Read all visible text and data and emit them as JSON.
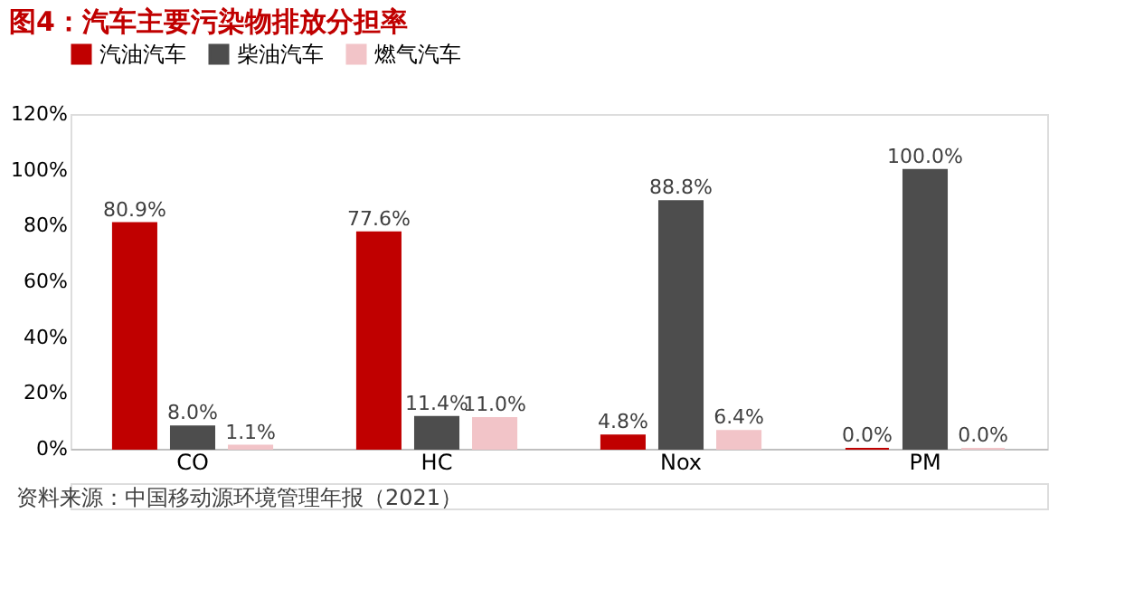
{
  "chart_data": {
    "type": "bar",
    "title": "图4：汽车主要污染物排放分担率",
    "categories": [
      "CO",
      "HC",
      "Nox",
      "PM"
    ],
    "series": [
      {
        "name": "汽油汽车",
        "color": "#c00000",
        "values": [
          80.9,
          77.6,
          4.8,
          0.0
        ],
        "value_labels": [
          "80.9%",
          "77.6%",
          "4.8%",
          "0.0%"
        ]
      },
      {
        "name": "柴油汽车",
        "color": "#4d4d4d",
        "values": [
          8.0,
          11.4,
          88.8,
          100.0
        ],
        "value_labels": [
          "8.0%",
          "11.4%",
          "88.8%",
          "100.0%"
        ]
      },
      {
        "name": "燃气汽车",
        "color": "#f2c4c8",
        "values": [
          1.1,
          11.0,
          6.4,
          0.0
        ],
        "value_labels": [
          "1.1%",
          "11.0%",
          "6.4%",
          "0.0%"
        ]
      }
    ],
    "ylim": [
      0,
      120
    ],
    "yticks": [
      {
        "value": 0,
        "label": "0%"
      },
      {
        "value": 20,
        "label": "20%"
      },
      {
        "value": 40,
        "label": "40%"
      },
      {
        "value": 60,
        "label": "60%"
      },
      {
        "value": 80,
        "label": "80%"
      },
      {
        "value": 100,
        "label": "100%"
      },
      {
        "value": 120,
        "label": "120%"
      }
    ],
    "grid": false,
    "legend": "top",
    "annotations": [
      "资料来源：中国移动源环境管理年报（2021）"
    ]
  }
}
